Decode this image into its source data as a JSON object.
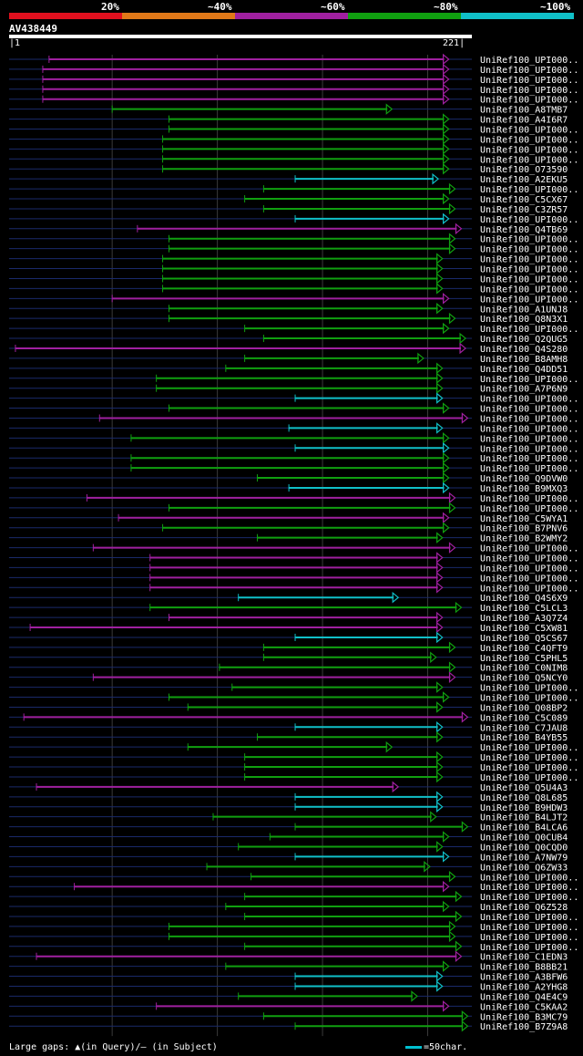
{
  "chart_data": {
    "type": "alignment-overview",
    "query": {
      "name": "AV438449",
      "start": 1,
      "end": 221
    },
    "identity_legend": [
      {
        "label": "20%",
        "color": "#e0101e"
      },
      {
        "label": "~40%",
        "color": "#e07818"
      },
      {
        "label": "~60%",
        "color": "#a020a0"
      },
      {
        "label": "~80%",
        "color": "#10a010"
      },
      {
        "label": "~100%",
        "color": "#10c0c8"
      }
    ],
    "gridlines_at": [
      50,
      100,
      150,
      200
    ],
    "hits": [
      {
        "label": "UniRef100_UPI000..",
        "start": 20,
        "end": 210,
        "identity": "~60%"
      },
      {
        "label": "UniRef100_UPI000..",
        "start": 17,
        "end": 210,
        "identity": "~60%"
      },
      {
        "label": "UniRef100_UPI000..",
        "start": 17,
        "end": 210,
        "identity": "~60%"
      },
      {
        "label": "UniRef100_UPI000..",
        "start": 17,
        "end": 210,
        "identity": "~60%"
      },
      {
        "label": "UniRef100_UPI000..",
        "start": 17,
        "end": 210,
        "identity": "~60%"
      },
      {
        "label": "UniRef100_A8TMB7",
        "start": 50,
        "end": 183,
        "identity": "~80%"
      },
      {
        "label": "UniRef100_A4I6R7",
        "start": 77,
        "end": 210,
        "identity": "~80%"
      },
      {
        "label": "UniRef100_UPI000..",
        "start": 77,
        "end": 210,
        "identity": "~80%"
      },
      {
        "label": "UniRef100_UPI000..",
        "start": 74,
        "end": 210,
        "identity": "~80%"
      },
      {
        "label": "UniRef100_UPI000..",
        "start": 74,
        "end": 210,
        "identity": "~80%"
      },
      {
        "label": "UniRef100_UPI000..",
        "start": 74,
        "end": 210,
        "identity": "~80%"
      },
      {
        "label": "UniRef100_O73590",
        "start": 74,
        "end": 210,
        "identity": "~80%"
      },
      {
        "label": "UniRef100_A2EKU5",
        "start": 137,
        "end": 205,
        "identity": "~100%"
      },
      {
        "label": "UniRef100_UPI000..",
        "start": 122,
        "end": 213,
        "identity": "~80%"
      },
      {
        "label": "UniRef100_C5CX67",
        "start": 113,
        "end": 210,
        "identity": "~80%"
      },
      {
        "label": "UniRef100_C3ZR57",
        "start": 122,
        "end": 213,
        "identity": "~80%"
      },
      {
        "label": "UniRef100_UPI000..",
        "start": 137,
        "end": 210,
        "identity": "~100%"
      },
      {
        "label": "UniRef100_Q4TB69",
        "start": 62,
        "end": 216,
        "identity": "~60%"
      },
      {
        "label": "UniRef100_UPI000..",
        "start": 77,
        "end": 213,
        "identity": "~80%"
      },
      {
        "label": "UniRef100_UPI000..",
        "start": 77,
        "end": 213,
        "identity": "~80%"
      },
      {
        "label": "UniRef100_UPI000..",
        "start": 74,
        "end": 207,
        "identity": "~80%"
      },
      {
        "label": "UniRef100_UPI000..",
        "start": 74,
        "end": 207,
        "identity": "~80%"
      },
      {
        "label": "UniRef100_UPI000..",
        "start": 74,
        "end": 207,
        "identity": "~80%"
      },
      {
        "label": "UniRef100_UPI000..",
        "start": 74,
        "end": 207,
        "identity": "~80%"
      },
      {
        "label": "UniRef100_UPI000..",
        "start": 50,
        "end": 210,
        "identity": "~60%"
      },
      {
        "label": "UniRef100_A1UNJ8",
        "start": 77,
        "end": 207,
        "identity": "~80%"
      },
      {
        "label": "UniRef100_Q8N3X1",
        "start": 77,
        "end": 213,
        "identity": "~80%"
      },
      {
        "label": "UniRef100_UPI000..",
        "start": 113,
        "end": 210,
        "identity": "~80%"
      },
      {
        "label": "UniRef100_Q2QUG5",
        "start": 122,
        "end": 218,
        "identity": "~80%"
      },
      {
        "label": "UniRef100_Q4S280",
        "start": 4,
        "end": 218,
        "identity": "~60%"
      },
      {
        "label": "UniRef100_B8AMH8",
        "start": 113,
        "end": 198,
        "identity": "~80%"
      },
      {
        "label": "UniRef100_Q4DD51",
        "start": 104,
        "end": 207,
        "identity": "~80%"
      },
      {
        "label": "UniRef100_UPI000..",
        "start": 71,
        "end": 207,
        "identity": "~80%"
      },
      {
        "label": "UniRef100_A7P6N9",
        "start": 71,
        "end": 207,
        "identity": "~80%"
      },
      {
        "label": "UniRef100_UPI000..",
        "start": 137,
        "end": 207,
        "identity": "~100%"
      },
      {
        "label": "UniRef100_UPI000..",
        "start": 77,
        "end": 210,
        "identity": "~80%"
      },
      {
        "label": "UniRef100_UPI000..",
        "start": 44,
        "end": 219,
        "identity": "~60%"
      },
      {
        "label": "UniRef100_UPI000..",
        "start": 134,
        "end": 207,
        "identity": "~100%"
      },
      {
        "label": "UniRef100_UPI000..",
        "start": 59,
        "end": 210,
        "identity": "~80%"
      },
      {
        "label": "UniRef100_UPI000..",
        "start": 137,
        "end": 210,
        "identity": "~100%"
      },
      {
        "label": "UniRef100_UPI000..",
        "start": 59,
        "end": 210,
        "identity": "~80%"
      },
      {
        "label": "UniRef100_UPI000..",
        "start": 59,
        "end": 210,
        "identity": "~80%"
      },
      {
        "label": "UniRef100_Q9DVW0",
        "start": 119,
        "end": 210,
        "identity": "~80%"
      },
      {
        "label": "UniRef100_B9MXQ3",
        "start": 134,
        "end": 210,
        "identity": "~100%"
      },
      {
        "label": "UniRef100_UPI000..",
        "start": 38,
        "end": 213,
        "identity": "~60%"
      },
      {
        "label": "UniRef100_UPI000..",
        "start": 77,
        "end": 213,
        "identity": "~80%"
      },
      {
        "label": "UniRef100_C5WYA1",
        "start": 53,
        "end": 210,
        "identity": "~60%"
      },
      {
        "label": "UniRef100_B7PNV6",
        "start": 74,
        "end": 210,
        "identity": "~80%"
      },
      {
        "label": "UniRef100_B2WMY2",
        "start": 119,
        "end": 207,
        "identity": "~80%"
      },
      {
        "label": "UniRef100_UPI000..",
        "start": 41,
        "end": 213,
        "identity": "~60%"
      },
      {
        "label": "UniRef100_UPI000..",
        "start": 68,
        "end": 207,
        "identity": "~60%"
      },
      {
        "label": "UniRef100_UPI000..",
        "start": 68,
        "end": 207,
        "identity": "~60%"
      },
      {
        "label": "UniRef100_UPI000..",
        "start": 68,
        "end": 207,
        "identity": "~60%"
      },
      {
        "label": "UniRef100_UPI000..",
        "start": 68,
        "end": 207,
        "identity": "~60%"
      },
      {
        "label": "UniRef100_Q4S6X9",
        "start": 110,
        "end": 186,
        "identity": "~100%"
      },
      {
        "label": "UniRef100_C5LCL3",
        "start": 68,
        "end": 216,
        "identity": "~80%"
      },
      {
        "label": "UniRef100_A3Q7Z4",
        "start": 77,
        "end": 207,
        "identity": "~60%"
      },
      {
        "label": "UniRef100_C5XW81",
        "start": 11,
        "end": 207,
        "identity": "~60%"
      },
      {
        "label": "UniRef100_Q5CS67",
        "start": 137,
        "end": 207,
        "identity": "~100%"
      },
      {
        "label": "UniRef100_C4QFT9",
        "start": 122,
        "end": 213,
        "identity": "~80%"
      },
      {
        "label": "UniRef100_C5PHL5",
        "start": 122,
        "end": 204,
        "identity": "~80%"
      },
      {
        "label": "UniRef100_C0NIM8",
        "start": 101,
        "end": 213,
        "identity": "~80%"
      },
      {
        "label": "UniRef100_Q5NCY0",
        "start": 41,
        "end": 213,
        "identity": "~60%"
      },
      {
        "label": "UniRef100_UPI000..",
        "start": 107,
        "end": 207,
        "identity": "~80%"
      },
      {
        "label": "UniRef100_UPI000..",
        "start": 77,
        "end": 210,
        "identity": "~80%"
      },
      {
        "label": "UniRef100_Q08BP2",
        "start": 86,
        "end": 207,
        "identity": "~80%"
      },
      {
        "label": "UniRef100_C5C089",
        "start": 8,
        "end": 219,
        "identity": "~60%"
      },
      {
        "label": "UniRef100_C7JAU8",
        "start": 137,
        "end": 207,
        "identity": "~100%"
      },
      {
        "label": "UniRef100_B4YB55",
        "start": 119,
        "end": 207,
        "identity": "~80%"
      },
      {
        "label": "UniRef100_UPI000..",
        "start": 86,
        "end": 183,
        "identity": "~80%"
      },
      {
        "label": "UniRef100_UPI000..",
        "start": 113,
        "end": 207,
        "identity": "~80%"
      },
      {
        "label": "UniRef100_UPI000..",
        "start": 113,
        "end": 207,
        "identity": "~80%"
      },
      {
        "label": "UniRef100_UPI000..",
        "start": 113,
        "end": 207,
        "identity": "~80%"
      },
      {
        "label": "UniRef100_Q5U4A3",
        "start": 14,
        "end": 186,
        "identity": "~60%"
      },
      {
        "label": "UniRef100_Q8L685",
        "start": 137,
        "end": 207,
        "identity": "~100%"
      },
      {
        "label": "UniRef100_B9HDW3",
        "start": 137,
        "end": 207,
        "identity": "~100%"
      },
      {
        "label": "UniRef100_B4LJT2",
        "start": 98,
        "end": 204,
        "identity": "~80%"
      },
      {
        "label": "UniRef100_B4LCA6",
        "start": 137,
        "end": 219,
        "identity": "~80%"
      },
      {
        "label": "UniRef100_Q0CUB4",
        "start": 125,
        "end": 210,
        "identity": "~80%"
      },
      {
        "label": "UniRef100_Q0CQD0",
        "start": 110,
        "end": 207,
        "identity": "~80%"
      },
      {
        "label": "UniRef100_A7NW79",
        "start": 137,
        "end": 210,
        "identity": "~100%"
      },
      {
        "label": "UniRef100_Q6ZW33",
        "start": 95,
        "end": 201,
        "identity": "~80%"
      },
      {
        "label": "UniRef100_UPI000..",
        "start": 116,
        "end": 213,
        "identity": "~80%"
      },
      {
        "label": "UniRef100_UPI000..",
        "start": 32,
        "end": 210,
        "identity": "~60%"
      },
      {
        "label": "UniRef100_UPI000..",
        "start": 113,
        "end": 216,
        "identity": "~80%"
      },
      {
        "label": "UniRef100_Q6Z528",
        "start": 104,
        "end": 210,
        "identity": "~80%"
      },
      {
        "label": "UniRef100_UPI000..",
        "start": 113,
        "end": 216,
        "identity": "~80%"
      },
      {
        "label": "UniRef100_UPI000..",
        "start": 77,
        "end": 213,
        "identity": "~80%"
      },
      {
        "label": "UniRef100_UPI000..",
        "start": 77,
        "end": 213,
        "identity": "~80%"
      },
      {
        "label": "UniRef100_UPI000..",
        "start": 113,
        "end": 216,
        "identity": "~80%"
      },
      {
        "label": "UniRef100_C1EDN3",
        "start": 14,
        "end": 216,
        "identity": "~60%"
      },
      {
        "label": "UniRef100_B8BB21",
        "start": 104,
        "end": 210,
        "identity": "~80%"
      },
      {
        "label": "UniRef100_A3BFW6",
        "start": 137,
        "end": 207,
        "identity": "~100%"
      },
      {
        "label": "UniRef100_A2YHG8",
        "start": 137,
        "end": 207,
        "identity": "~100%"
      },
      {
        "label": "UniRef100_Q4E4C9",
        "start": 110,
        "end": 195,
        "identity": "~80%"
      },
      {
        "label": "UniRef100_C5KAA2",
        "start": 71,
        "end": 210,
        "identity": "~60%"
      },
      {
        "label": "UniRef100_B3MC79",
        "start": 122,
        "end": 219,
        "identity": "~80%"
      },
      {
        "label": "UniRef100_B7Z9A8",
        "start": 137,
        "end": 219,
        "identity": "~80%"
      }
    ],
    "footer": {
      "gaps_note": "Large gaps: ▲(in Query)/– (in Subject)",
      "scale_note": "=50char."
    }
  }
}
